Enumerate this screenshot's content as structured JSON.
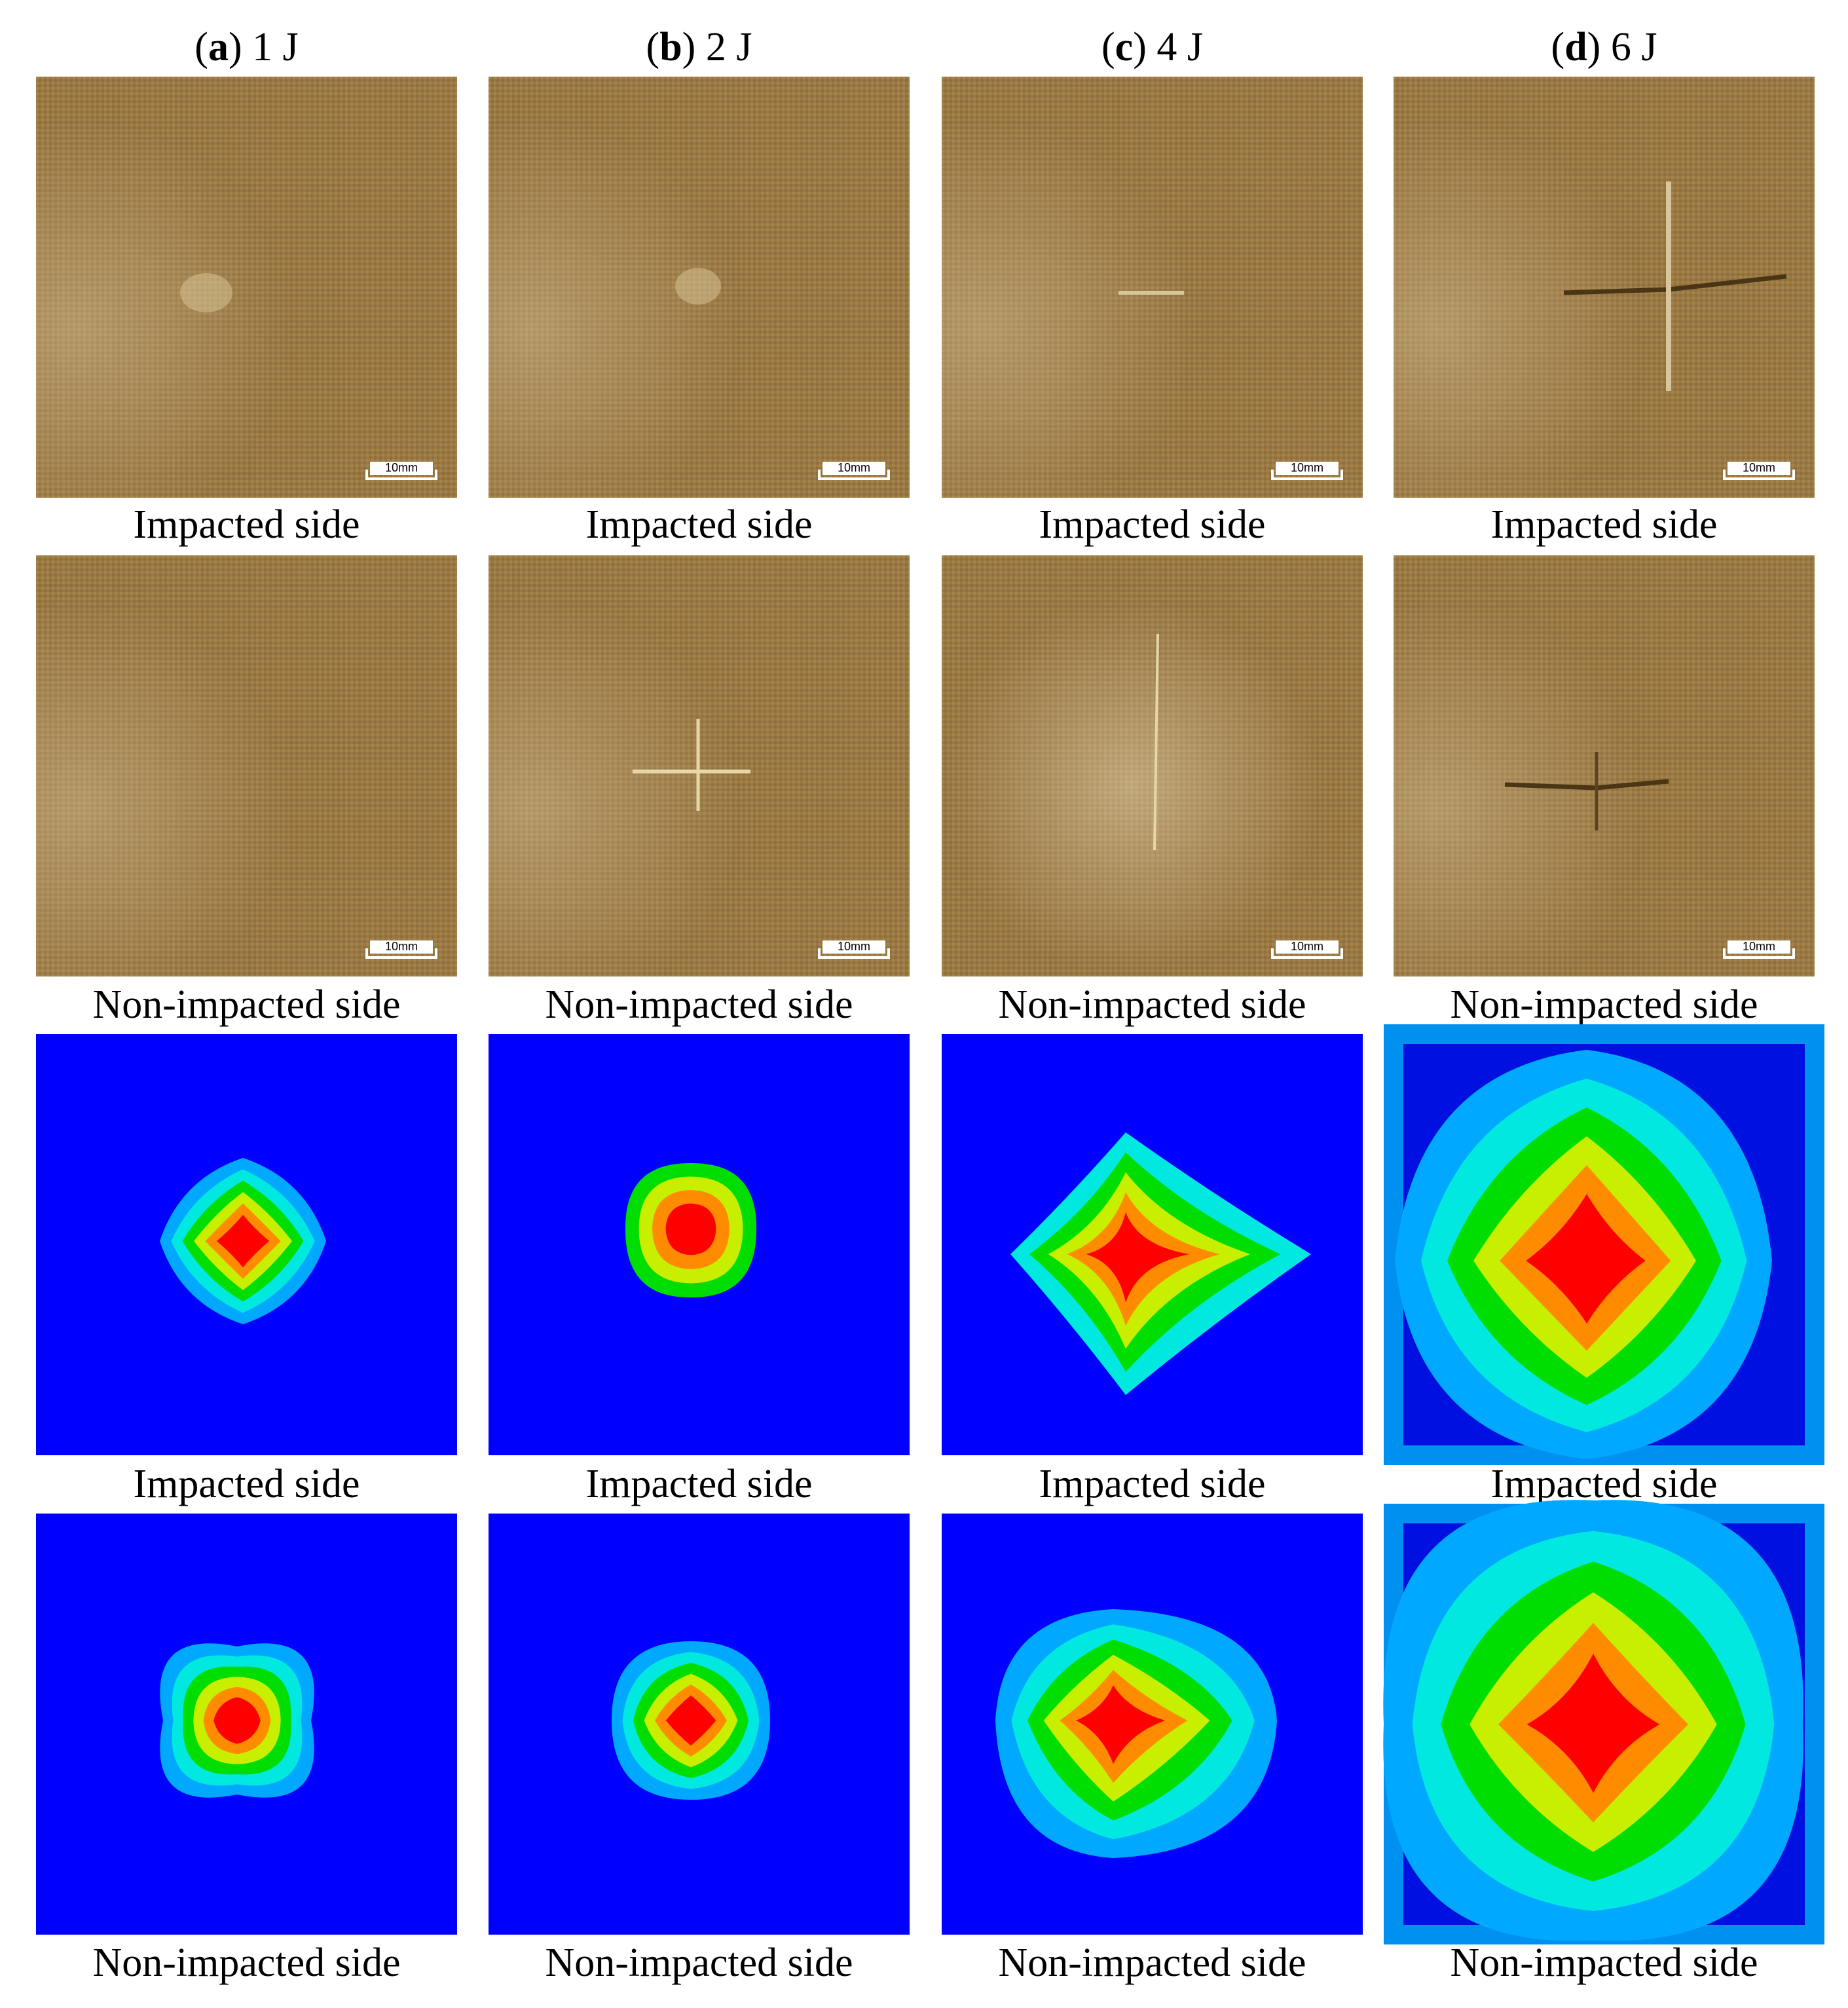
{
  "columns": [
    {
      "title": [
        "(",
        "a",
        ") 1 J"
      ]
    },
    {
      "title": [
        "(",
        "b",
        ") 2 J"
      ]
    },
    {
      "title": [
        "(",
        "c",
        ") 4 J"
      ]
    },
    {
      "title": [
        "(",
        "d",
        ") 6 J"
      ]
    }
  ],
  "rows": [
    {
      "captions": [
        "Impacted side",
        "Impacted side",
        "Impacted side",
        "Impacted side"
      ]
    },
    {
      "captions": [
        "Non-impacted side",
        "Non-impacted side",
        "Non-impacted side",
        "Non-impacted side"
      ]
    },
    {
      "captions": [
        "Impacted side",
        "Impacted side",
        "Impacted side",
        "Impacted side"
      ]
    },
    {
      "captions": [
        "Non-impacted side",
        "Non-impacted side",
        "Non-impacted side",
        "Non-impacted side"
      ]
    }
  ],
  "scale_bar": "10mm"
}
